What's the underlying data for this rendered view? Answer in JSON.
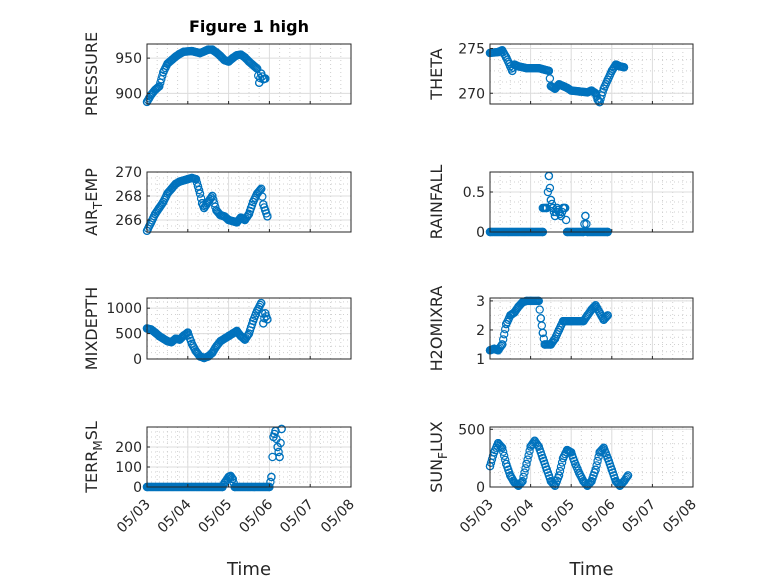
{
  "figure": {
    "title": "Figure 1 high",
    "marker_color": "#0072BD"
  },
  "chart_data": [
    {
      "type": "scatter",
      "ylabel": "PRESSURE",
      "xlabel": "",
      "title": "Figure 1 high",
      "xlim": [
        "05/03",
        "05/08"
      ],
      "ylim": [
        885,
        970
      ],
      "yticks": [
        900,
        950
      ],
      "minor_x": true,
      "minor_y": false,
      "show_xticks": false,
      "anchors": [
        [
          3.0,
          888
        ],
        [
          3.05,
          893
        ],
        [
          3.1,
          898
        ],
        [
          3.2,
          905
        ],
        [
          3.3,
          910
        ],
        [
          3.4,
          930
        ],
        [
          3.5,
          942
        ],
        [
          3.6,
          947
        ],
        [
          3.7,
          952
        ],
        [
          3.8,
          956
        ],
        [
          3.9,
          959
        ],
        [
          4.1,
          960
        ],
        [
          4.3,
          957
        ],
        [
          4.5,
          962
        ],
        [
          4.6,
          962
        ],
        [
          4.7,
          958
        ],
        [
          4.8,
          953
        ],
        [
          4.9,
          947
        ],
        [
          5.0,
          945
        ],
        [
          5.1,
          950
        ],
        [
          5.2,
          954
        ],
        [
          5.3,
          955
        ],
        [
          5.4,
          951
        ],
        [
          5.5,
          945
        ],
        [
          5.6,
          940
        ],
        [
          5.7,
          935
        ],
        [
          5.75,
          915
        ],
        [
          5.8,
          928
        ],
        [
          5.85,
          920
        ],
        [
          5.9,
          921
        ]
      ]
    },
    {
      "type": "scatter",
      "ylabel": "THETA",
      "xlabel": "",
      "title": "",
      "xlim": [
        "05/03",
        "05/08"
      ],
      "ylim": [
        268.8,
        275.5
      ],
      "yticks": [
        270,
        275
      ],
      "minor_x": true,
      "minor_y": true,
      "show_xticks": false,
      "anchors": [
        [
          3.0,
          274.5
        ],
        [
          3.2,
          274.6
        ],
        [
          3.3,
          274.8
        ],
        [
          3.4,
          274.0
        ],
        [
          3.5,
          273.0
        ],
        [
          3.55,
          272.5
        ],
        [
          3.6,
          273.2
        ],
        [
          3.7,
          273.0
        ],
        [
          3.9,
          272.8
        ],
        [
          4.2,
          272.8
        ],
        [
          4.45,
          272.5
        ],
        [
          4.5,
          270.8
        ],
        [
          4.6,
          270.5
        ],
        [
          4.7,
          271.0
        ],
        [
          4.8,
          270.8
        ],
        [
          4.9,
          270.6
        ],
        [
          5.0,
          270.3
        ],
        [
          5.2,
          270.2
        ],
        [
          5.4,
          270.1
        ],
        [
          5.5,
          270.3
        ],
        [
          5.6,
          270.0
        ],
        [
          5.65,
          269.3
        ],
        [
          5.7,
          269.0
        ],
        [
          5.8,
          270.5
        ],
        [
          5.9,
          271.5
        ],
        [
          6.0,
          272.5
        ],
        [
          6.1,
          273.2
        ],
        [
          6.2,
          273.0
        ],
        [
          6.3,
          272.9
        ]
      ]
    },
    {
      "type": "scatter",
      "ylabel": "AIR_TEMP",
      "xlabel": "",
      "title": "",
      "xlim": [
        "05/03",
        "05/08"
      ],
      "ylim": [
        265.0,
        270.0
      ],
      "yticks": [
        266,
        268,
        270
      ],
      "minor_x": true,
      "minor_y": true,
      "show_xticks": false,
      "anchors": [
        [
          3.0,
          265.1
        ],
        [
          3.1,
          265.8
        ],
        [
          3.2,
          266.5
        ],
        [
          3.3,
          267.0
        ],
        [
          3.4,
          267.5
        ],
        [
          3.5,
          268.2
        ],
        [
          3.6,
          268.6
        ],
        [
          3.7,
          269.0
        ],
        [
          3.8,
          269.2
        ],
        [
          3.9,
          269.3
        ],
        [
          4.0,
          269.4
        ],
        [
          4.1,
          269.5
        ],
        [
          4.2,
          269.4
        ],
        [
          4.25,
          268.8
        ],
        [
          4.3,
          268.2
        ],
        [
          4.35,
          267.4
        ],
        [
          4.4,
          267.0
        ],
        [
          4.5,
          267.5
        ],
        [
          4.6,
          268.0
        ],
        [
          4.7,
          266.8
        ],
        [
          4.8,
          266.4
        ],
        [
          4.9,
          266.3
        ],
        [
          5.0,
          266.0
        ],
        [
          5.1,
          265.9
        ],
        [
          5.2,
          265.8
        ],
        [
          5.3,
          266.2
        ],
        [
          5.4,
          266.0
        ],
        [
          5.5,
          266.5
        ],
        [
          5.6,
          267.5
        ],
        [
          5.7,
          268.2
        ],
        [
          5.8,
          268.6
        ],
        [
          5.85,
          267.3
        ],
        [
          5.9,
          266.8
        ],
        [
          5.95,
          266.3
        ]
      ]
    },
    {
      "type": "scatter",
      "ylabel": "RAINFALL",
      "xlabel": "",
      "title": "",
      "xlim": [
        "05/03",
        "05/08"
      ],
      "ylim": [
        0,
        0.75
      ],
      "yticks": [
        0,
        0.5
      ],
      "minor_x": true,
      "minor_y": true,
      "show_xticks": false,
      "anchors": [
        [
          3.0,
          0
        ],
        [
          4.3,
          0
        ],
        [
          4.3,
          0.3
        ],
        [
          4.4,
          0.3
        ],
        [
          4.45,
          0.7
        ],
        [
          4.5,
          0.4
        ],
        [
          4.55,
          0.3
        ],
        [
          4.6,
          0.2
        ],
        [
          4.65,
          0.3
        ],
        [
          4.7,
          0.25
        ],
        [
          4.75,
          0.2
        ],
        [
          4.8,
          0.3
        ],
        [
          4.85,
          0.3
        ],
        [
          4.9,
          0
        ],
        [
          5.3,
          0
        ],
        [
          5.35,
          0.2
        ],
        [
          5.4,
          0
        ],
        [
          5.9,
          0
        ]
      ]
    },
    {
      "type": "scatter",
      "ylabel": "MIXDEPTH",
      "xlabel": "",
      "title": "",
      "xlim": [
        "05/03",
        "05/08"
      ],
      "ylim": [
        0,
        1200
      ],
      "yticks": [
        0,
        500,
        1000
      ],
      "minor_x": true,
      "minor_y": true,
      "show_xticks": false,
      "anchors": [
        [
          3.0,
          600
        ],
        [
          3.1,
          580
        ],
        [
          3.2,
          520
        ],
        [
          3.3,
          450
        ],
        [
          3.4,
          400
        ],
        [
          3.5,
          350
        ],
        [
          3.6,
          330
        ],
        [
          3.7,
          400
        ],
        [
          3.8,
          380
        ],
        [
          3.9,
          460
        ],
        [
          4.0,
          520
        ],
        [
          4.1,
          300
        ],
        [
          4.2,
          150
        ],
        [
          4.3,
          50
        ],
        [
          4.4,
          20
        ],
        [
          4.5,
          50
        ],
        [
          4.6,
          120
        ],
        [
          4.7,
          250
        ],
        [
          4.8,
          350
        ],
        [
          4.9,
          400
        ],
        [
          5.0,
          450
        ],
        [
          5.1,
          500
        ],
        [
          5.2,
          550
        ],
        [
          5.3,
          450
        ],
        [
          5.4,
          380
        ],
        [
          5.5,
          500
        ],
        [
          5.6,
          750
        ],
        [
          5.7,
          950
        ],
        [
          5.8,
          1100
        ],
        [
          5.85,
          700
        ],
        [
          5.9,
          900
        ],
        [
          5.95,
          780
        ]
      ]
    },
    {
      "type": "scatter",
      "ylabel": "H2OMIXRA",
      "xlabel": "",
      "title": "",
      "xlim": [
        "05/03",
        "05/08"
      ],
      "ylim": [
        1,
        3.1
      ],
      "yticks": [
        1,
        2,
        3
      ],
      "minor_x": true,
      "minor_y": true,
      "show_xticks": false,
      "anchors": [
        [
          3.0,
          1.3
        ],
        [
          3.1,
          1.35
        ],
        [
          3.2,
          1.3
        ],
        [
          3.3,
          1.5
        ],
        [
          3.4,
          2.2
        ],
        [
          3.5,
          2.5
        ],
        [
          3.6,
          2.6
        ],
        [
          3.7,
          2.8
        ],
        [
          3.8,
          2.95
        ],
        [
          3.9,
          3.0
        ],
        [
          4.0,
          3.0
        ],
        [
          4.2,
          3.0
        ],
        [
          4.25,
          2.4
        ],
        [
          4.3,
          1.9
        ],
        [
          4.35,
          1.5
        ],
        [
          4.5,
          1.5
        ],
        [
          4.6,
          1.7
        ],
        [
          4.7,
          2.0
        ],
        [
          4.8,
          2.3
        ],
        [
          5.0,
          2.3
        ],
        [
          5.3,
          2.3
        ],
        [
          5.4,
          2.5
        ],
        [
          5.5,
          2.7
        ],
        [
          5.6,
          2.85
        ],
        [
          5.7,
          2.6
        ],
        [
          5.8,
          2.35
        ],
        [
          5.9,
          2.5
        ]
      ]
    },
    {
      "type": "scatter",
      "ylabel": "TERR_MSL",
      "xlabel": "Time",
      "title": "",
      "xlim": [
        "05/03",
        "05/08"
      ],
      "ylim": [
        0,
        300
      ],
      "yticks": [
        0,
        100,
        200
      ],
      "minor_x": true,
      "minor_y": true,
      "show_xticks": true,
      "xticklabels": [
        "05/03",
        "05/04",
        "05/05",
        "05/06",
        "05/07",
        "05/08"
      ],
      "anchors": [
        [
          3.0,
          0
        ],
        [
          4.85,
          0
        ],
        [
          4.9,
          20
        ],
        [
          5.0,
          50
        ],
        [
          5.05,
          55
        ],
        [
          5.1,
          40
        ],
        [
          5.15,
          0
        ],
        [
          6.0,
          0
        ],
        [
          6.05,
          50
        ],
        [
          6.1,
          250
        ],
        [
          6.15,
          280
        ],
        [
          6.2,
          200
        ],
        [
          6.25,
          150
        ],
        [
          6.3,
          290
        ]
      ]
    },
    {
      "type": "scatter",
      "ylabel": "SUN_FLUX",
      "xlabel": "Time",
      "title": "",
      "xlim": [
        "05/03",
        "05/08"
      ],
      "ylim": [
        0,
        520
      ],
      "yticks": [
        0,
        500
      ],
      "minor_x": true,
      "minor_y": true,
      "show_xticks": true,
      "xticklabels": [
        "05/03",
        "05/04",
        "05/05",
        "05/06",
        "05/07",
        "05/08"
      ],
      "anchors": [
        [
          3.0,
          180
        ],
        [
          3.1,
          300
        ],
        [
          3.2,
          380
        ],
        [
          3.3,
          340
        ],
        [
          3.4,
          200
        ],
        [
          3.5,
          100
        ],
        [
          3.6,
          40
        ],
        [
          3.7,
          10
        ],
        [
          3.8,
          50
        ],
        [
          3.9,
          200
        ],
        [
          4.0,
          350
        ],
        [
          4.1,
          400
        ],
        [
          4.2,
          350
        ],
        [
          4.3,
          250
        ],
        [
          4.4,
          150
        ],
        [
          4.5,
          50
        ],
        [
          4.6,
          10
        ],
        [
          4.7,
          100
        ],
        [
          4.8,
          250
        ],
        [
          4.9,
          320
        ],
        [
          5.0,
          300
        ],
        [
          5.1,
          200
        ],
        [
          5.2,
          120
        ],
        [
          5.3,
          50
        ],
        [
          5.4,
          10
        ],
        [
          5.5,
          50
        ],
        [
          5.6,
          150
        ],
        [
          5.7,
          300
        ],
        [
          5.8,
          340
        ],
        [
          5.9,
          250
        ],
        [
          6.0,
          150
        ],
        [
          6.1,
          50
        ],
        [
          6.2,
          10
        ],
        [
          6.3,
          50
        ],
        [
          6.4,
          100
        ]
      ]
    }
  ]
}
